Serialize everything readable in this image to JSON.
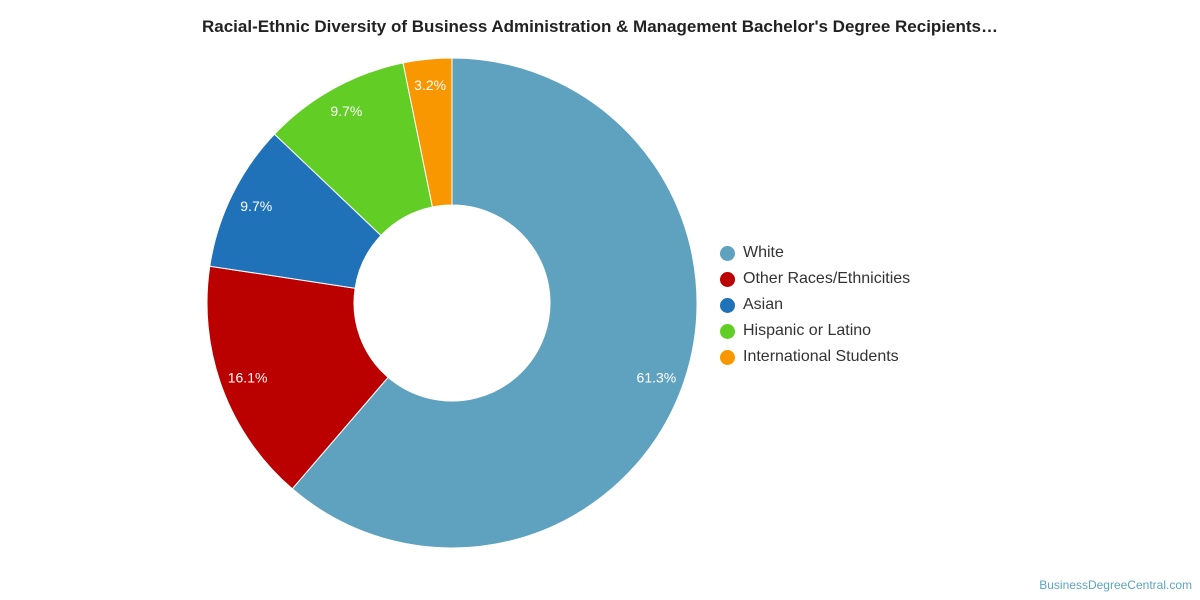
{
  "chart_data": {
    "type": "pie",
    "variant": "donut",
    "title": "Racial-Ethnic Diversity of Business Administration & Management Bachelor's Degree Recipients…",
    "categories": [
      "White",
      "Other Races/Ethnicities",
      "Asian",
      "Hispanic or Latino",
      "International Students"
    ],
    "values": [
      61.3,
      16.1,
      9.7,
      9.7,
      3.2
    ],
    "labels": [
      "61.3%",
      "16.1%",
      "9.7%",
      "9.7%",
      "3.2%"
    ],
    "colors": [
      "#5fa2bf",
      "#bb0000",
      "#1f72b8",
      "#62ce25",
      "#f99700"
    ],
    "legend_position": "right"
  },
  "credit": "BusinessDegreeCentral.com"
}
